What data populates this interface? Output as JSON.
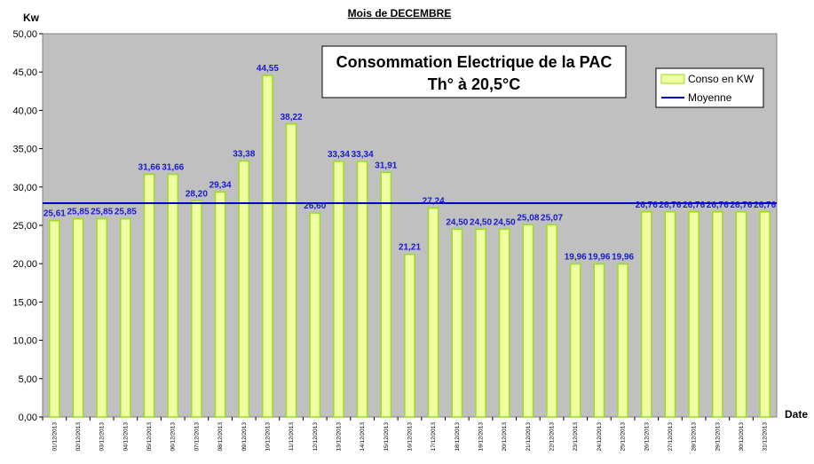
{
  "chart_data": {
    "type": "bar",
    "title": "Mois  de  DECEMBRE",
    "subtitle_lines": [
      "Consommation Electrique de la PAC",
      "Th° à  20,5°C"
    ],
    "ylabel": "Kw",
    "xlabel": "Date",
    "ylim": [
      0,
      50
    ],
    "yticks": [
      "0,00",
      "5,00",
      "10,00",
      "15,00",
      "20,00",
      "25,00",
      "30,00",
      "35,00",
      "40,00",
      "45,00",
      "50,00"
    ],
    "grid": false,
    "legend_position": "top-right",
    "categories": [
      "01/12/2013",
      "02/12/2013",
      "03/12/2013",
      "04/12/2013",
      "05/12/2013",
      "06/12/2013",
      "07/12/2013",
      "08/12/2013",
      "09/12/2013",
      "10/12/2013",
      "11/12/2013",
      "12/12/2013",
      "13/12/2013",
      "14/12/2013",
      "15/12/2013",
      "16/12/2013",
      "17/12/2013",
      "18/12/2013",
      "19/12/2013",
      "20/12/2013",
      "21/12/2013",
      "22/12/2013",
      "23/12/2013",
      "24/12/2013",
      "25/12/2013",
      "26/12/2013",
      "27/12/2013",
      "28/12/2013",
      "29/12/2013",
      "30/12/2013",
      "31/12/2013"
    ],
    "series": [
      {
        "name": "Conso en KW",
        "type": "bar",
        "color": "#f0ffa0",
        "edge_color": "#99dd22",
        "values": [
          25.61,
          25.85,
          25.85,
          25.85,
          31.66,
          31.66,
          28.2,
          29.34,
          33.38,
          44.55,
          38.22,
          26.6,
          33.34,
          33.34,
          31.91,
          21.21,
          27.24,
          24.5,
          24.5,
          24.5,
          25.08,
          25.07,
          19.96,
          19.96,
          19.96,
          26.76,
          26.76,
          26.76,
          26.76,
          26.76,
          26.76
        ],
        "labels": [
          "25,61",
          "25,85",
          "25,85",
          "25,85",
          "31,66",
          "31,66",
          "28,20",
          "29,34",
          "33,38",
          "44,55",
          "38,22",
          "26,60",
          "33,34",
          "33,34",
          "31,91",
          "21,21",
          "27,24",
          "24,50",
          "24,50",
          "24,50",
          "25,08",
          "25,07",
          "19,96",
          "19,96",
          "19,96",
          "26,76",
          "26,76",
          "26,76",
          "26,76",
          "26,76",
          "26,76"
        ]
      },
      {
        "name": "Moyenne",
        "type": "line",
        "color": "#0000cc",
        "value": 27.9
      }
    ],
    "plot_background": "#c0c0c0"
  }
}
